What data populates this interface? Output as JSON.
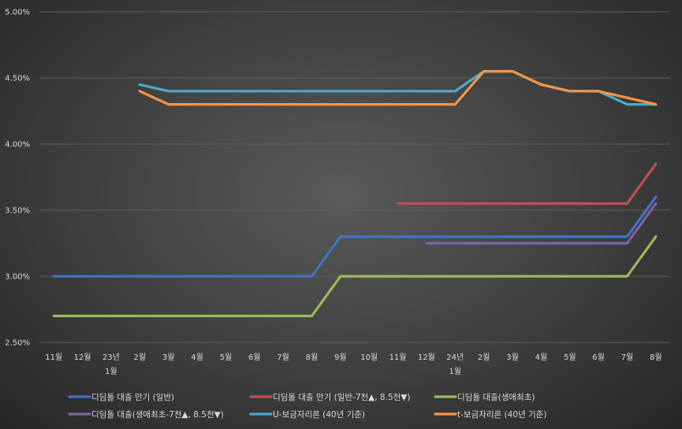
{
  "chart_data": {
    "type": "line",
    "categories": [
      "11월",
      "12월",
      "23년 1월",
      "2월",
      "3월",
      "4월",
      "5월",
      "6월",
      "7월",
      "8월",
      "9월",
      "10월",
      "11월",
      "12월",
      "24년 1월",
      "2월",
      "3월",
      "4월",
      "5월",
      "6월",
      "7월",
      "8월"
    ],
    "category_lines": [
      [
        "11월"
      ],
      [
        "12월"
      ],
      [
        "23년",
        "1월"
      ],
      [
        "2월"
      ],
      [
        "3월"
      ],
      [
        "4월"
      ],
      [
        "5월"
      ],
      [
        "6월"
      ],
      [
        "7월"
      ],
      [
        "8월"
      ],
      [
        "9월"
      ],
      [
        "10월"
      ],
      [
        "11월"
      ],
      [
        "12월"
      ],
      [
        "24년",
        "1월"
      ],
      [
        "2월"
      ],
      [
        "3월"
      ],
      [
        "4월"
      ],
      [
        "5월"
      ],
      [
        "6월"
      ],
      [
        "7월"
      ],
      [
        "8월"
      ]
    ],
    "y_ticks": [
      "2.50%",
      "3.00%",
      "3.50%",
      "4.00%",
      "4.50%",
      "5.00%"
    ],
    "ylim": [
      2.5,
      5.0
    ],
    "grid": "horizontal",
    "legend_position": "bottom",
    "series": [
      {
        "name": "디딤돌 대출 만기 (일반)",
        "color": "#4472c4",
        "values": [
          3.0,
          3.0,
          3.0,
          3.0,
          3.0,
          3.0,
          3.0,
          3.0,
          3.0,
          3.0,
          3.3,
          3.3,
          3.3,
          3.3,
          3.3,
          3.3,
          3.3,
          3.3,
          3.3,
          3.3,
          3.3,
          3.6
        ]
      },
      {
        "name": "디딤돌 대출 만기 (일반-7천▲, 8.5천▼)",
        "color": "#c0504d",
        "values": [
          null,
          null,
          null,
          null,
          null,
          null,
          null,
          null,
          null,
          null,
          null,
          null,
          3.55,
          3.55,
          3.55,
          3.55,
          3.55,
          3.55,
          3.55,
          3.55,
          3.55,
          3.85
        ]
      },
      {
        "name": "디딤돌 대출(생애최초)",
        "color": "#9bbb59",
        "values": [
          2.7,
          2.7,
          2.7,
          2.7,
          2.7,
          2.7,
          2.7,
          2.7,
          2.7,
          2.7,
          3.0,
          3.0,
          3.0,
          3.0,
          3.0,
          3.0,
          3.0,
          3.0,
          3.0,
          3.0,
          3.0,
          3.3
        ]
      },
      {
        "name": "디딤돌 대출(생애최초-7천▲, 8.5천▼)",
        "color": "#8064a2",
        "values": [
          null,
          null,
          null,
          null,
          null,
          null,
          null,
          null,
          null,
          null,
          null,
          null,
          null,
          3.25,
          3.25,
          3.25,
          3.25,
          3.25,
          3.25,
          3.25,
          3.25,
          3.55
        ]
      },
      {
        "name": "U-보금자리론 (40년 기준)",
        "color": "#4bacc6",
        "values": [
          null,
          null,
          null,
          4.45,
          4.4,
          4.4,
          4.4,
          4.4,
          4.4,
          4.4,
          4.4,
          4.4,
          4.4,
          4.4,
          4.4,
          4.55,
          4.55,
          4.45,
          4.4,
          4.4,
          4.3,
          4.3
        ]
      },
      {
        "name": "t-보금자리론 (40년 기준)",
        "color": "#f79646",
        "values": [
          null,
          null,
          null,
          4.4,
          4.3,
          4.3,
          4.3,
          4.3,
          4.3,
          4.3,
          4.3,
          4.3,
          4.3,
          4.3,
          4.3,
          4.55,
          4.55,
          4.45,
          4.4,
          4.4,
          4.35,
          4.3
        ]
      }
    ],
    "draw_order": [
      1,
      3,
      2,
      0,
      4,
      5
    ]
  }
}
